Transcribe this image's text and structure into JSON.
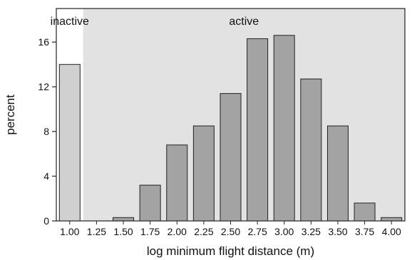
{
  "chart_data": {
    "type": "bar",
    "xlabel": "log minimum flight distance (m)",
    "ylabel": "percent",
    "ylim": [
      0,
      19
    ],
    "yticks": [
      0,
      4,
      8,
      12,
      16
    ],
    "x_tick_labels": [
      "1.00",
      "1.25",
      "1.50",
      "1.75",
      "2.00",
      "2.25",
      "2.50",
      "2.75",
      "3.00",
      "3.25",
      "3.50",
      "3.75",
      "4.00"
    ],
    "bars": [
      {
        "x": 1.0,
        "value": 14.0,
        "group": "inactive"
      },
      {
        "x": 1.5,
        "value": 0.3,
        "group": "active"
      },
      {
        "x": 1.75,
        "value": 3.2,
        "group": "active"
      },
      {
        "x": 2.0,
        "value": 6.8,
        "group": "active"
      },
      {
        "x": 2.25,
        "value": 8.5,
        "group": "active"
      },
      {
        "x": 2.5,
        "value": 11.4,
        "group": "active"
      },
      {
        "x": 2.75,
        "value": 16.3,
        "group": "active"
      },
      {
        "x": 3.0,
        "value": 16.6,
        "group": "active"
      },
      {
        "x": 3.25,
        "value": 12.7,
        "group": "active"
      },
      {
        "x": 3.5,
        "value": 8.5,
        "group": "active"
      },
      {
        "x": 3.75,
        "value": 1.6,
        "group": "active"
      },
      {
        "x": 4.0,
        "value": 0.3,
        "group": "active"
      }
    ],
    "regions": [
      {
        "label": "inactive",
        "from": 0.875,
        "to": 1.125,
        "color": "#ffffff"
      },
      {
        "label": "active",
        "from": 1.125,
        "to": 4.125,
        "color": "#e2e2e2"
      }
    ],
    "colors": {
      "inactive_bar": "#d0d0d0",
      "active_bar": "#a3a3a3",
      "bar_stroke": "#222222"
    },
    "grid": false,
    "legend": "none"
  }
}
